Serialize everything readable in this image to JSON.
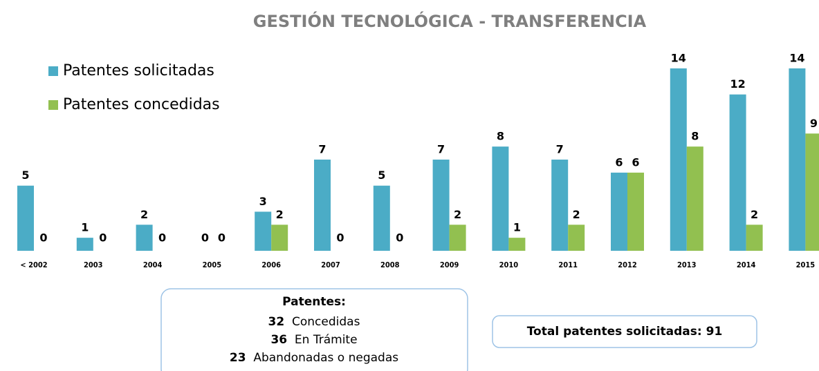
{
  "chart_data": {
    "type": "bar",
    "title": "GESTIÓN TECNOLÓGICA - TRANSFERENCIA",
    "categories": [
      "< 2002",
      "2003",
      "2004",
      "2005",
      "2006",
      "2007",
      "2008",
      "2009",
      "2010",
      "2011",
      "2012",
      "2013",
      "2014",
      "2015"
    ],
    "series": [
      {
        "name": "Patentes solicitadas",
        "color": "#4bacc6",
        "values": [
          5,
          1,
          2,
          0,
          3,
          7,
          5,
          7,
          8,
          7,
          6,
          14,
          12,
          14
        ]
      },
      {
        "name": "Patentes concedidas",
        "color": "#92c050",
        "values": [
          0,
          0,
          0,
          0,
          2,
          0,
          0,
          2,
          1,
          2,
          6,
          8,
          2,
          9
        ]
      }
    ]
  },
  "summary": {
    "title": "Patentes:",
    "items": [
      {
        "value": 32,
        "label": "Concedidas"
      },
      {
        "value": 36,
        "label": "En Trámite"
      },
      {
        "value": 23,
        "label": "Abandonadas o negadas"
      }
    ]
  },
  "total": {
    "label": "Total patentes solicitadas:",
    "value": 91
  }
}
